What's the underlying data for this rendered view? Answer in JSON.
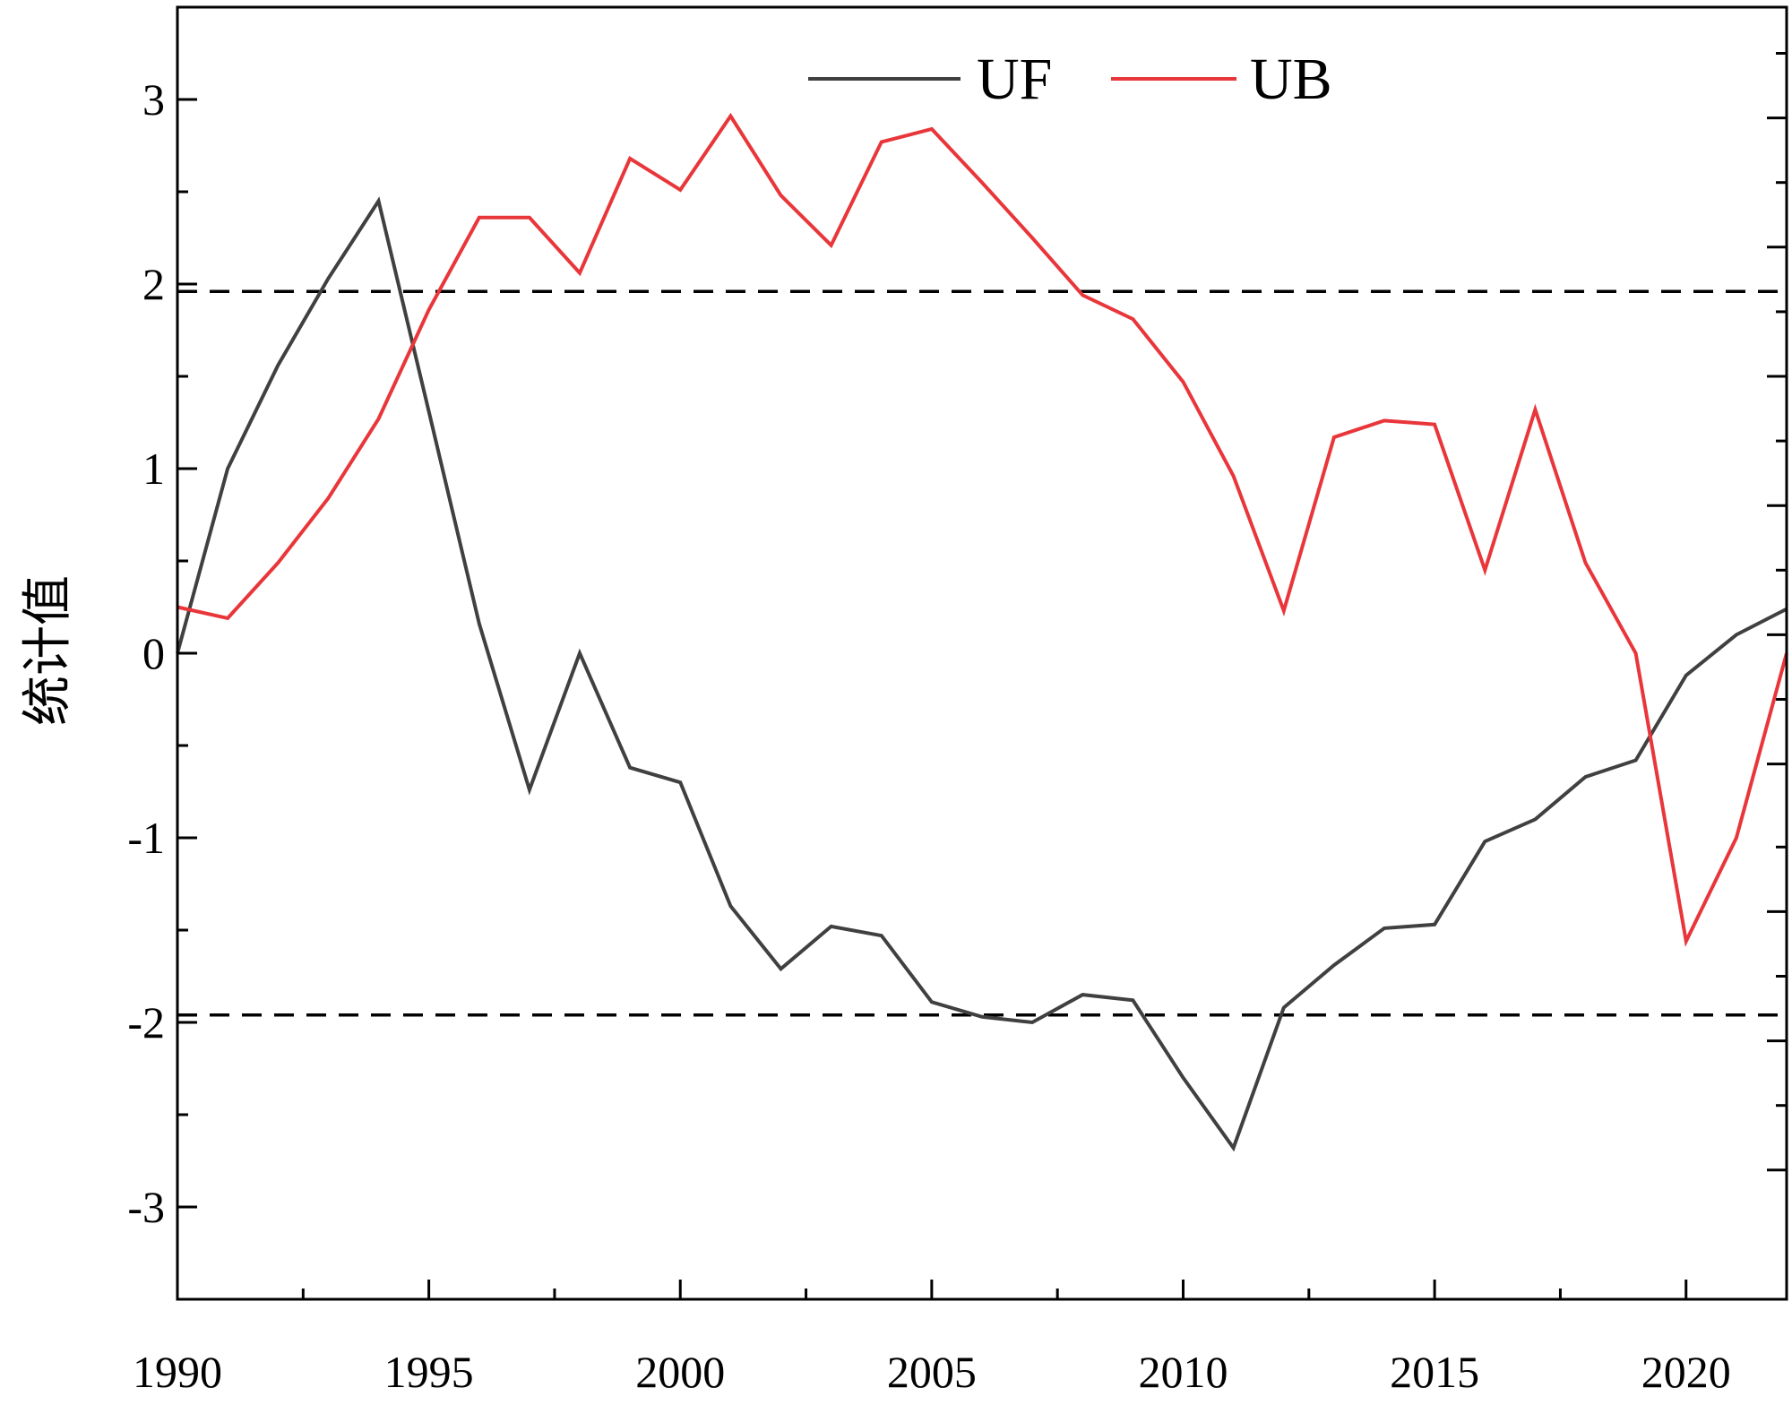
{
  "chart_data": {
    "type": "line",
    "xlabel": "",
    "ylabel": "统计值",
    "xlim": [
      1990,
      2022
    ],
    "ylim": [
      -3.5,
      3.5
    ],
    "x_ticks": [
      1990,
      1995,
      2000,
      2005,
      2010,
      2015,
      2020
    ],
    "y_ticks": [
      3,
      2,
      1,
      0,
      -1,
      -2,
      -3
    ],
    "y_tick_labels": [
      "3",
      "2",
      "1",
      "0",
      "-1",
      "-2",
      "-3"
    ],
    "x": [
      1990,
      1991,
      1992,
      1993,
      1994,
      1995,
      1996,
      1997,
      1998,
      1999,
      2000,
      2001,
      2002,
      2003,
      2004,
      2005,
      2006,
      2007,
      2008,
      2009,
      2010,
      2011,
      2012,
      2013,
      2014,
      2015,
      2016,
      2017,
      2018,
      2019,
      2020,
      2021,
      2022
    ],
    "series": [
      {
        "name": "UF",
        "color": "#404040",
        "values": [
          0.0,
          1.0,
          1.56,
          2.03,
          2.45,
          1.31,
          0.16,
          -0.74,
          0.0,
          -0.62,
          -0.7,
          -1.37,
          -1.71,
          -1.48,
          -1.53,
          -1.89,
          -1.97,
          -2.0,
          -1.85,
          -1.88,
          -2.3,
          -2.68,
          -1.92,
          -1.69,
          -1.49,
          -1.47,
          -1.02,
          -0.9,
          -0.67,
          -0.58,
          -0.12,
          0.1,
          0.24
        ]
      },
      {
        "name": "UB",
        "color": "#e8363a",
        "values": [
          0.25,
          0.19,
          0.49,
          0.84,
          1.27,
          1.86,
          2.36,
          2.36,
          2.06,
          2.68,
          2.51,
          2.91,
          2.48,
          2.21,
          2.77,
          2.84,
          2.55,
          2.25,
          1.94,
          1.81,
          1.47,
          0.96,
          0.23,
          1.17,
          1.26,
          1.24,
          0.45,
          1.32,
          0.49,
          0.0,
          -1.56,
          -1.0,
          0.0
        ]
      }
    ],
    "reference_lines": [
      1.96,
      -1.96
    ],
    "legend_position": "top-center",
    "grid": false
  }
}
